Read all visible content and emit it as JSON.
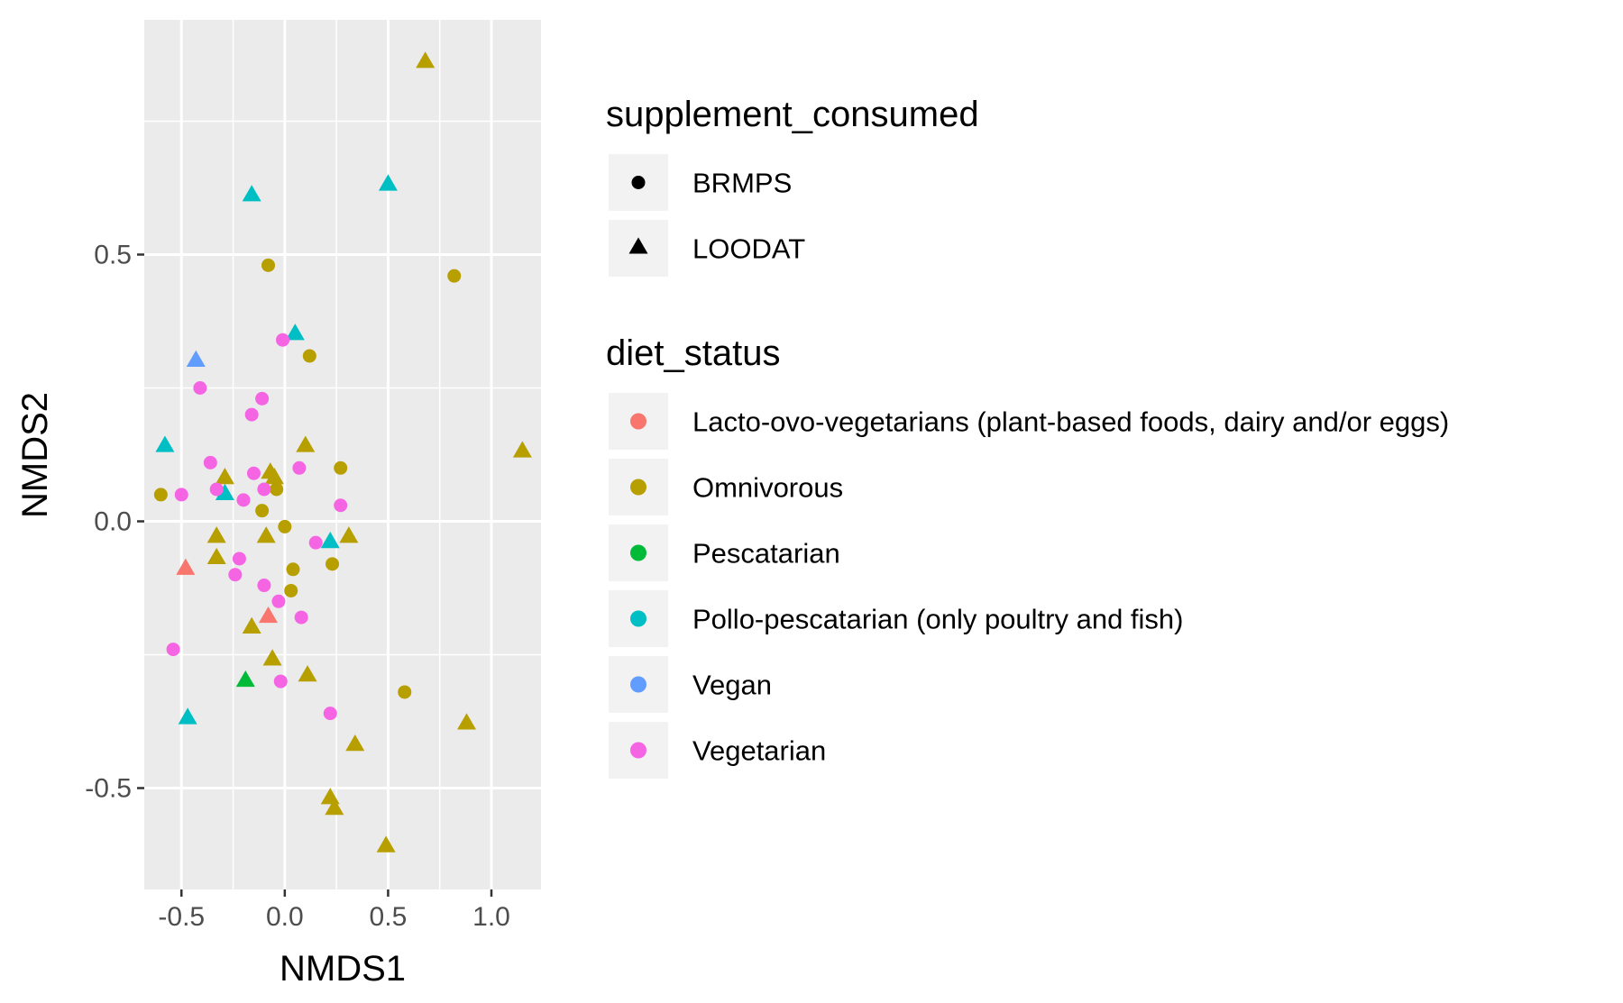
{
  "chart_data": {
    "type": "scatter",
    "title": "",
    "xlabel": "NMDS1",
    "ylabel": "NMDS2",
    "xlim": [
      -0.68,
      1.24
    ],
    "ylim": [
      -0.69,
      0.94
    ],
    "xticks": [
      -0.5,
      0.0,
      0.5,
      1.0
    ],
    "xtick_labels": [
      "-0.5",
      "0.0",
      "0.5",
      "1.0"
    ],
    "yticks": [
      -0.5,
      0.0,
      0.5
    ],
    "ytick_labels": [
      "-0.5",
      "0.0",
      "0.5"
    ],
    "grid": true,
    "legends": [
      {
        "title": "supplement_consumed",
        "kind": "shape",
        "entries": [
          {
            "label": "BRMPS",
            "shape": "circle"
          },
          {
            "label": "LOODAT",
            "shape": "triangle"
          }
        ]
      },
      {
        "title": "diet_status",
        "kind": "color",
        "entries": [
          {
            "label": "Lacto-ovo-vegetarians (plant-based foods, dairy and/or eggs)",
            "color": "#F8766D"
          },
          {
            "label": "Omnivorous",
            "color": "#B79F00"
          },
          {
            "label": "Pescatarian",
            "color": "#00BA38"
          },
          {
            "label": "Pollo-pescatarian (only poultry and fish)",
            "color": "#00BFC4"
          },
          {
            "label": "Vegan",
            "color": "#619CFF"
          },
          {
            "label": "Vegetarian",
            "color": "#F564E3"
          }
        ]
      }
    ],
    "legend_placement": "right",
    "points": [
      {
        "x": 0.68,
        "y": 0.86,
        "shape": "triangle",
        "diet": "Omnivorous"
      },
      {
        "x": 1.15,
        "y": 0.13,
        "shape": "triangle",
        "diet": "Omnivorous"
      },
      {
        "x": 0.88,
        "y": -0.38,
        "shape": "triangle",
        "diet": "Omnivorous"
      },
      {
        "x": 0.49,
        "y": -0.61,
        "shape": "triangle",
        "diet": "Omnivorous"
      },
      {
        "x": 0.22,
        "y": -0.52,
        "shape": "triangle",
        "diet": "Omnivorous"
      },
      {
        "x": 0.24,
        "y": -0.54,
        "shape": "triangle",
        "diet": "Omnivorous"
      },
      {
        "x": 0.34,
        "y": -0.42,
        "shape": "triangle",
        "diet": "Omnivorous"
      },
      {
        "x": 0.11,
        "y": -0.29,
        "shape": "triangle",
        "diet": "Omnivorous"
      },
      {
        "x": -0.06,
        "y": -0.26,
        "shape": "triangle",
        "diet": "Omnivorous"
      },
      {
        "x": -0.16,
        "y": -0.2,
        "shape": "triangle",
        "diet": "Omnivorous"
      },
      {
        "x": -0.33,
        "y": -0.07,
        "shape": "triangle",
        "diet": "Omnivorous"
      },
      {
        "x": -0.33,
        "y": -0.03,
        "shape": "triangle",
        "diet": "Omnivorous"
      },
      {
        "x": -0.09,
        "y": -0.03,
        "shape": "triangle",
        "diet": "Omnivorous"
      },
      {
        "x": 0.31,
        "y": -0.03,
        "shape": "triangle",
        "diet": "Omnivorous"
      },
      {
        "x": -0.29,
        "y": 0.08,
        "shape": "triangle",
        "diet": "Omnivorous"
      },
      {
        "x": -0.07,
        "y": 0.09,
        "shape": "triangle",
        "diet": "Omnivorous"
      },
      {
        "x": -0.05,
        "y": 0.08,
        "shape": "triangle",
        "diet": "Omnivorous"
      },
      {
        "x": 0.1,
        "y": 0.14,
        "shape": "triangle",
        "diet": "Omnivorous"
      },
      {
        "x": 0.82,
        "y": 0.46,
        "shape": "circle",
        "diet": "Omnivorous"
      },
      {
        "x": -0.08,
        "y": 0.48,
        "shape": "circle",
        "diet": "Omnivorous"
      },
      {
        "x": 0.12,
        "y": 0.31,
        "shape": "circle",
        "diet": "Omnivorous"
      },
      {
        "x": 0.27,
        "y": 0.1,
        "shape": "circle",
        "diet": "Omnivorous"
      },
      {
        "x": -0.6,
        "y": 0.05,
        "shape": "circle",
        "diet": "Omnivorous"
      },
      {
        "x": -0.04,
        "y": 0.06,
        "shape": "circle",
        "diet": "Omnivorous"
      },
      {
        "x": -0.11,
        "y": 0.02,
        "shape": "circle",
        "diet": "Omnivorous"
      },
      {
        "x": 0.0,
        "y": -0.01,
        "shape": "circle",
        "diet": "Omnivorous"
      },
      {
        "x": 0.23,
        "y": -0.08,
        "shape": "circle",
        "diet": "Omnivorous"
      },
      {
        "x": 0.04,
        "y": -0.09,
        "shape": "circle",
        "diet": "Omnivorous"
      },
      {
        "x": 0.03,
        "y": -0.13,
        "shape": "circle",
        "diet": "Omnivorous"
      },
      {
        "x": 0.58,
        "y": -0.32,
        "shape": "circle",
        "diet": "Omnivorous"
      },
      {
        "x": -0.16,
        "y": 0.61,
        "shape": "triangle",
        "diet": "Pollo-pescatarian (only poultry and fish)"
      },
      {
        "x": 0.5,
        "y": 0.63,
        "shape": "triangle",
        "diet": "Pollo-pescatarian (only poultry and fish)"
      },
      {
        "x": 0.05,
        "y": 0.35,
        "shape": "triangle",
        "diet": "Pollo-pescatarian (only poultry and fish)"
      },
      {
        "x": -0.58,
        "y": 0.14,
        "shape": "triangle",
        "diet": "Pollo-pescatarian (only poultry and fish)"
      },
      {
        "x": -0.29,
        "y": 0.05,
        "shape": "triangle",
        "diet": "Pollo-pescatarian (only poultry and fish)"
      },
      {
        "x": 0.22,
        "y": -0.04,
        "shape": "triangle",
        "diet": "Pollo-pescatarian (only poultry and fish)"
      },
      {
        "x": -0.47,
        "y": -0.37,
        "shape": "triangle",
        "diet": "Pollo-pescatarian (only poultry and fish)"
      },
      {
        "x": -0.43,
        "y": 0.3,
        "shape": "triangle",
        "diet": "Vegan"
      },
      {
        "x": -0.48,
        "y": -0.09,
        "shape": "triangle",
        "diet": "Lacto-ovo-vegetarians (plant-based foods, dairy and/or eggs)"
      },
      {
        "x": -0.08,
        "y": -0.18,
        "shape": "triangle",
        "diet": "Lacto-ovo-vegetarians (plant-based foods, dairy and/or eggs)"
      },
      {
        "x": -0.19,
        "y": -0.3,
        "shape": "triangle",
        "diet": "Pescatarian"
      },
      {
        "x": -0.01,
        "y": 0.34,
        "shape": "circle",
        "diet": "Vegetarian"
      },
      {
        "x": -0.41,
        "y": 0.25,
        "shape": "circle",
        "diet": "Vegetarian"
      },
      {
        "x": -0.11,
        "y": 0.23,
        "shape": "circle",
        "diet": "Vegetarian"
      },
      {
        "x": -0.16,
        "y": 0.2,
        "shape": "circle",
        "diet": "Vegetarian"
      },
      {
        "x": -0.36,
        "y": 0.11,
        "shape": "circle",
        "diet": "Vegetarian"
      },
      {
        "x": -0.15,
        "y": 0.09,
        "shape": "circle",
        "diet": "Vegetarian"
      },
      {
        "x": 0.07,
        "y": 0.1,
        "shape": "circle",
        "diet": "Vegetarian"
      },
      {
        "x": -0.33,
        "y": 0.06,
        "shape": "circle",
        "diet": "Vegetarian"
      },
      {
        "x": -0.1,
        "y": 0.06,
        "shape": "circle",
        "diet": "Vegetarian"
      },
      {
        "x": -0.5,
        "y": 0.05,
        "shape": "circle",
        "diet": "Vegetarian"
      },
      {
        "x": -0.2,
        "y": 0.04,
        "shape": "circle",
        "diet": "Vegetarian"
      },
      {
        "x": 0.27,
        "y": 0.03,
        "shape": "circle",
        "diet": "Vegetarian"
      },
      {
        "x": 0.15,
        "y": -0.04,
        "shape": "circle",
        "diet": "Vegetarian"
      },
      {
        "x": -0.22,
        "y": -0.07,
        "shape": "circle",
        "diet": "Vegetarian"
      },
      {
        "x": -0.24,
        "y": -0.1,
        "shape": "circle",
        "diet": "Vegetarian"
      },
      {
        "x": -0.1,
        "y": -0.12,
        "shape": "circle",
        "diet": "Vegetarian"
      },
      {
        "x": -0.03,
        "y": -0.15,
        "shape": "circle",
        "diet": "Vegetarian"
      },
      {
        "x": 0.08,
        "y": -0.18,
        "shape": "circle",
        "diet": "Vegetarian"
      },
      {
        "x": -0.54,
        "y": -0.24,
        "shape": "circle",
        "diet": "Vegetarian"
      },
      {
        "x": -0.02,
        "y": -0.3,
        "shape": "circle",
        "diet": "Vegetarian"
      },
      {
        "x": 0.22,
        "y": -0.36,
        "shape": "circle",
        "diet": "Vegetarian"
      }
    ]
  }
}
